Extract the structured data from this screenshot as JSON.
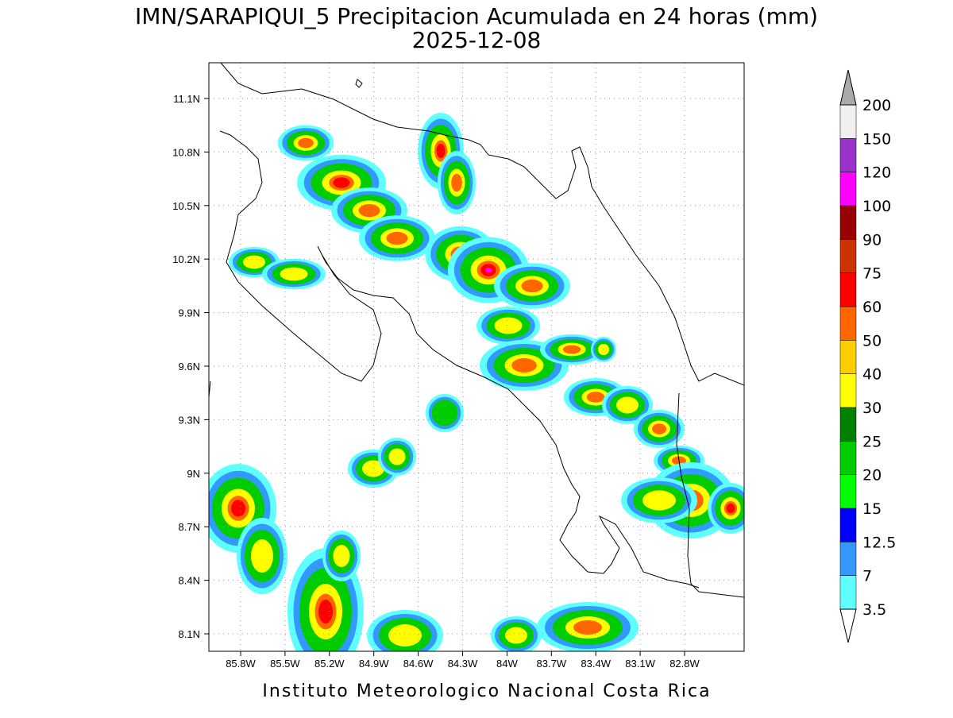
{
  "header": {
    "title": "IMN/SARAPIQUI_5 Precipitacion Acumulada en 24 horas (mm)",
    "date": "2025-12-08"
  },
  "map": {
    "lon_ticks": [
      "85.8W",
      "85.5W",
      "85.2W",
      "84.9W",
      "84.6W",
      "84.3W",
      "84W",
      "83.7W",
      "83.4W",
      "83.1W",
      "82.8W"
    ],
    "lat_ticks": [
      "11.1N",
      "10.8N",
      "10.5N",
      "10.2N",
      "9.9N",
      "9.6N",
      "9.3N",
      "9N",
      "8.7N",
      "8.4N",
      "8.1N"
    ]
  },
  "colorbar": {
    "labels": [
      "3.5",
      "7",
      "12.5",
      "15",
      "20",
      "25",
      "30",
      "40",
      "50",
      "60",
      "75",
      "90",
      "100",
      "120",
      "150",
      "200"
    ],
    "colors": [
      "#60ffff",
      "#3399ff",
      "#0000ff",
      "#00ff00",
      "#00cc00",
      "#008000",
      "#ffff00",
      "#ffcc00",
      "#ff6600",
      "#ff0000",
      "#cc3300",
      "#990000",
      "#ff00ff",
      "#9933cc",
      "#f0f0f0"
    ],
    "over_color": "#aaaaaa",
    "under_color": "#ffffff"
  },
  "footer": "Instituto Meteorologico Nacional Costa Rica"
}
